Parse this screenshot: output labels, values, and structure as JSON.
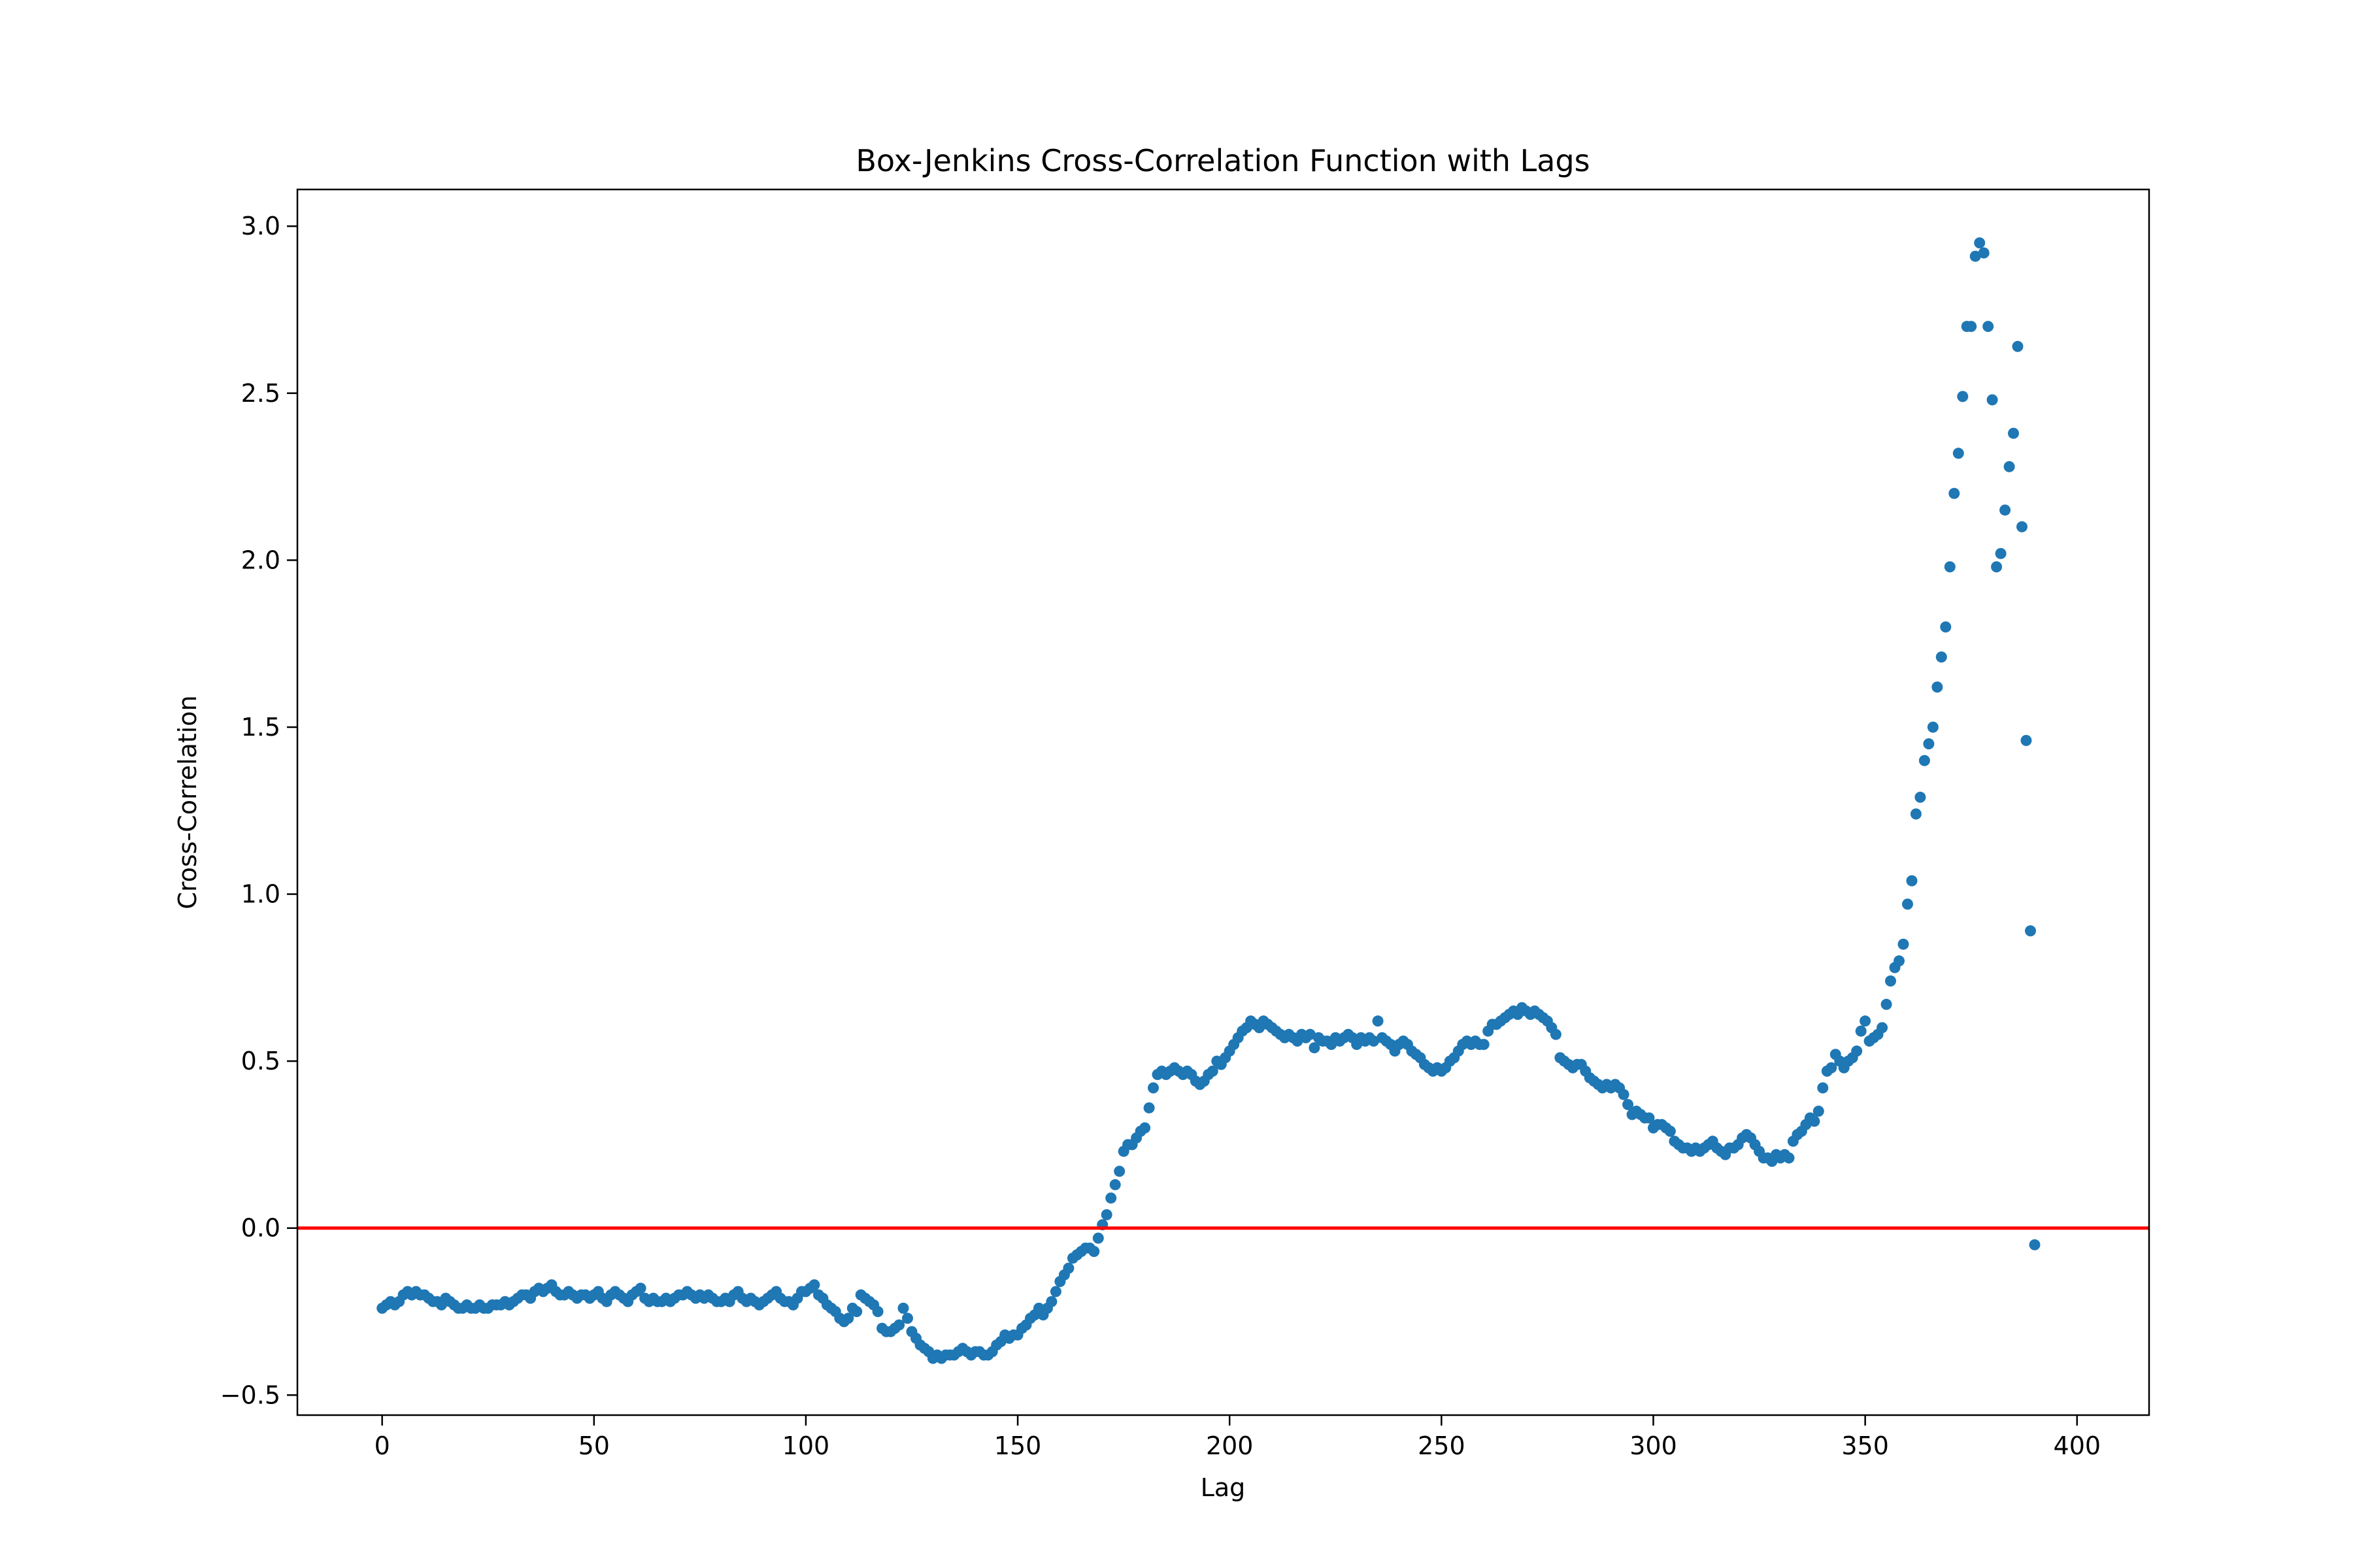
{
  "chart_data": {
    "type": "scatter",
    "title": "Box-Jenkins Cross-Correlation Function with Lags",
    "xlabel": "Lag",
    "ylabel": "Cross-Correlation",
    "xlim": [
      -20,
      417
    ],
    "ylim": [
      -0.56,
      3.11
    ],
    "xticks": [
      0,
      50,
      100,
      150,
      200,
      250,
      300,
      350,
      400
    ],
    "yticks": [
      -0.5,
      0.0,
      0.5,
      1.0,
      1.5,
      2.0,
      2.5,
      3.0
    ],
    "xtick_labels": [
      "0",
      "50",
      "100",
      "150",
      "200",
      "250",
      "300",
      "350",
      "400"
    ],
    "ytick_labels": [
      "−0.5",
      "0.0",
      "0.5",
      "1.0",
      "1.5",
      "2.0",
      "2.5",
      "3.0"
    ],
    "grid": false,
    "point_color": "#1f77b4",
    "reference_line": {
      "y": 0.0,
      "color": "#ff0000"
    },
    "x_start": 0,
    "y": [
      -0.24,
      -0.23,
      -0.22,
      -0.23,
      -0.22,
      -0.2,
      -0.19,
      -0.2,
      -0.19,
      -0.2,
      -0.2,
      -0.21,
      -0.22,
      -0.22,
      -0.23,
      -0.21,
      -0.22,
      -0.23,
      -0.24,
      -0.24,
      -0.23,
      -0.24,
      -0.24,
      -0.23,
      -0.24,
      -0.24,
      -0.23,
      -0.23,
      -0.23,
      -0.22,
      -0.23,
      -0.22,
      -0.21,
      -0.2,
      -0.2,
      -0.21,
      -0.19,
      -0.18,
      -0.19,
      -0.18,
      -0.17,
      -0.19,
      -0.2,
      -0.2,
      -0.19,
      -0.2,
      -0.21,
      -0.2,
      -0.2,
      -0.21,
      -0.2,
      -0.19,
      -0.21,
      -0.22,
      -0.2,
      -0.19,
      -0.2,
      -0.21,
      -0.22,
      -0.2,
      -0.19,
      -0.18,
      -0.21,
      -0.22,
      -0.21,
      -0.22,
      -0.22,
      -0.21,
      -0.22,
      -0.21,
      -0.2,
      -0.2,
      -0.19,
      -0.2,
      -0.21,
      -0.2,
      -0.21,
      -0.2,
      -0.21,
      -0.22,
      -0.22,
      -0.21,
      -0.22,
      -0.2,
      -0.19,
      -0.21,
      -0.22,
      -0.21,
      -0.22,
      -0.23,
      -0.22,
      -0.21,
      -0.2,
      -0.19,
      -0.21,
      -0.22,
      -0.22,
      -0.23,
      -0.21,
      -0.19,
      -0.19,
      -0.18,
      -0.17,
      -0.2,
      -0.21,
      -0.23,
      -0.24,
      -0.25,
      -0.27,
      -0.28,
      -0.27,
      -0.24,
      -0.25,
      -0.2,
      -0.21,
      -0.22,
      -0.23,
      -0.25,
      -0.3,
      -0.31,
      -0.31,
      -0.3,
      -0.29,
      -0.24,
      -0.27,
      -0.31,
      -0.33,
      -0.35,
      -0.36,
      -0.37,
      -0.39,
      -0.38,
      -0.39,
      -0.38,
      -0.38,
      -0.38,
      -0.37,
      -0.36,
      -0.37,
      -0.38,
      -0.37,
      -0.37,
      -0.38,
      -0.38,
      -0.37,
      -0.35,
      -0.34,
      -0.32,
      -0.33,
      -0.32,
      -0.32,
      -0.3,
      -0.29,
      -0.27,
      -0.26,
      -0.24,
      -0.26,
      -0.24,
      -0.22,
      -0.19,
      -0.16,
      -0.14,
      -0.12,
      -0.09,
      -0.08,
      -0.07,
      -0.06,
      -0.06,
      -0.07,
      -0.03,
      0.01,
      0.04,
      0.09,
      0.13,
      0.17,
      0.23,
      0.25,
      0.25,
      0.27,
      0.29,
      0.3,
      0.36,
      0.42,
      0.46,
      0.47,
      0.46,
      0.47,
      0.48,
      0.47,
      0.46,
      0.47,
      0.46,
      0.44,
      0.43,
      0.44,
      0.46,
      0.47,
      0.5,
      0.49,
      0.51,
      0.53,
      0.55,
      0.57,
      0.59,
      0.6,
      0.62,
      0.61,
      0.6,
      0.62,
      0.61,
      0.6,
      0.59,
      0.58,
      0.57,
      0.58,
      0.57,
      0.56,
      0.58,
      0.57,
      0.58,
      0.54,
      0.57,
      0.56,
      0.56,
      0.55,
      0.57,
      0.56,
      0.57,
      0.58,
      0.57,
      0.55,
      0.57,
      0.56,
      0.57,
      0.56,
      0.62,
      0.57,
      0.56,
      0.55,
      0.53,
      0.55,
      0.56,
      0.55,
      0.53,
      0.52,
      0.51,
      0.49,
      0.48,
      0.47,
      0.48,
      0.47,
      0.48,
      0.5,
      0.51,
      0.53,
      0.55,
      0.56,
      0.55,
      0.56,
      0.55,
      0.55,
      0.59,
      0.61,
      0.61,
      0.62,
      0.63,
      0.64,
      0.65,
      0.64,
      0.66,
      0.65,
      0.64,
      0.65,
      0.64,
      0.63,
      0.62,
      0.6,
      0.58,
      0.51,
      0.5,
      0.49,
      0.48,
      0.49,
      0.49,
      0.47,
      0.45,
      0.44,
      0.43,
      0.42,
      0.43,
      0.42,
      0.43,
      0.42,
      0.4,
      0.37,
      0.34,
      0.35,
      0.34,
      0.33,
      0.33,
      0.3,
      0.31,
      0.31,
      0.3,
      0.29,
      0.26,
      0.25,
      0.24,
      0.24,
      0.23,
      0.24,
      0.23,
      0.24,
      0.25,
      0.26,
      0.24,
      0.23,
      0.22,
      0.24,
      0.24,
      0.25,
      0.27,
      0.28,
      0.27,
      0.25,
      0.23,
      0.21,
      0.21,
      0.2,
      0.22,
      0.21,
      0.22,
      0.21,
      0.26,
      0.28,
      0.29,
      0.31,
      0.33,
      0.32,
      0.35,
      0.42,
      0.47,
      0.48,
      0.52,
      0.5,
      0.48,
      0.5,
      0.51,
      0.53,
      0.59,
      0.62,
      0.56,
      0.57,
      0.58,
      0.6,
      0.67,
      0.74,
      0.78,
      0.8,
      0.85,
      0.97,
      1.04,
      1.24,
      1.29,
      1.4,
      1.45,
      1.5,
      1.62,
      1.71,
      1.8,
      1.98,
      2.2,
      2.32,
      2.49,
      2.7,
      2.7,
      2.91,
      2.95,
      2.92,
      2.7,
      2.48,
      1.98,
      2.02,
      2.15,
      2.28,
      2.38,
      2.64,
      2.1,
      1.46,
      0.89,
      -0.05
    ]
  }
}
